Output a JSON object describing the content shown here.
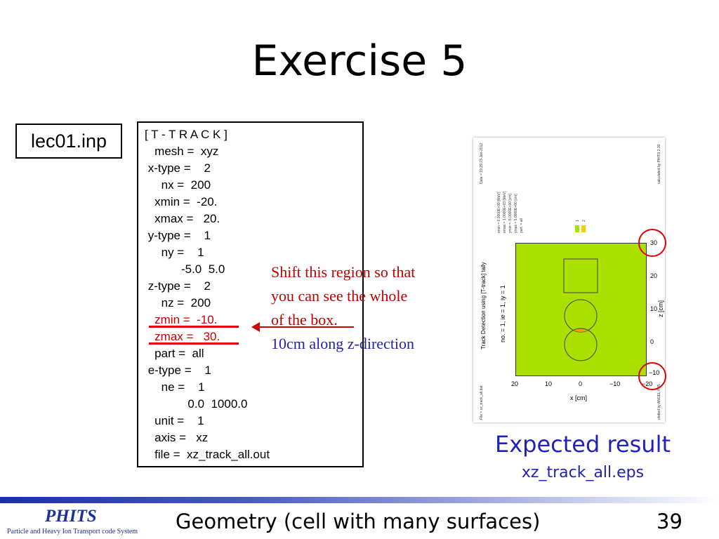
{
  "slide": {
    "title": "Exercise 5",
    "filename_label": "lec01.inp",
    "code_lines": [
      "[ T - T R A C K ]",
      "   mesh =  xyz",
      " x-type =    2",
      "     nx =  200",
      "   xmin =  -20.",
      "   xmax =   20.",
      " y-type =    1",
      "     ny =    1",
      "           -5.0  5.0",
      " z-type =    2",
      "     nz =  200",
      "   zmin =  -10.",
      "   zmax =   30.",
      "   part =  all",
      " e-type =    1",
      "     ne =    1",
      "             0.0  1000.0",
      "   unit =    1",
      "   axis =   xz",
      "   file =  xz_track_all.out"
    ],
    "annotation": {
      "red_lines": [
        "Shift this region so that",
        "you can see the whole",
        "of the box."
      ],
      "blue_line": "10cm along z-direction"
    },
    "plot": {
      "title": "Track Detection using [T-track] tally",
      "subtitle": "no. =  1,  ie =  1,  iy =  1",
      "z_axis_label": "z [cm]",
      "x_axis_label": "x [cm]",
      "z_ticks": [
        "30",
        "20",
        "10",
        "0",
        "−10"
      ],
      "x_ticks": [
        "20",
        "10",
        "0",
        "−10",
        "−20"
      ],
      "params": [
        "emin  =  0.0000E+00 [MeV]",
        "emax  =  1.0000E+03 [MeV]",
        "ymin  =  -5.0000E+00 [cm]",
        "ymax  =  5.0000E+00 [cm]",
        "part. =  all"
      ],
      "legend_values": [
        "1",
        "2"
      ],
      "date_text": "Date = 19:29 23-Jan-2012",
      "calc_text": "calculated by PHITS 2.30",
      "file_text": "File = xz_track_all.dat",
      "plot_text": "plotted by ANGEL 4.35",
      "colors": {
        "fill": "#a9e000",
        "overlap": "#f5a000",
        "circle_marks": "#e00000"
      }
    },
    "expected_label": "Expected result",
    "expected_file": "xz_track_all.eps",
    "footer": {
      "logo": "PHITS",
      "logo_sub": "Particle and Heavy Ion Transport code System",
      "subject": "Geometry (cell with many surfaces)",
      "page": "39"
    }
  }
}
